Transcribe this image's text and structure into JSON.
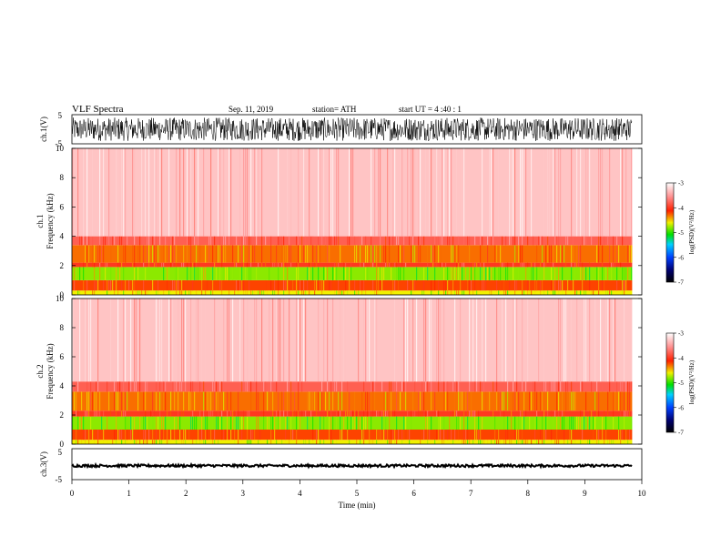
{
  "header": {
    "title": "VLF  Spectra",
    "date": "Sep. 11, 2019",
    "station": "station= ATH",
    "start": "start  UT  =   4  :40 : 1"
  },
  "colorbar": {
    "label": "log(PSD)(V²/Hz)",
    "ticks": [
      "-3",
      "-4",
      "-5",
      "-6",
      "-7"
    ],
    "range": [
      -7,
      -3
    ]
  },
  "chart_data": [
    {
      "type": "line",
      "panel": "ch.1",
      "ylabel": "ch.1(V)",
      "ylim": [
        -5,
        5
      ],
      "yticks": [
        "5",
        "-5"
      ],
      "description_series": "dense broadband waveform spanning roughly -4 to 4 V",
      "x_range_min": [
        0,
        9.83
      ]
    },
    {
      "type": "heatmap",
      "panel": "ch.1 spectrogram",
      "ylabel_lines": [
        "ch.1",
        "Frequency  (kHz)"
      ],
      "ylim": [
        0,
        10
      ],
      "yticks": [
        "0",
        "2",
        "4",
        "6",
        "8",
        "10"
      ],
      "x_range_min": [
        0,
        9.83
      ],
      "bands_khz": [
        {
          "from": 0,
          "to": 0.3,
          "log_psd": -4.6
        },
        {
          "from": 0.3,
          "to": 1.0,
          "log_psd": -4.2
        },
        {
          "from": 1.0,
          "to": 1.9,
          "log_psd": -4.8
        },
        {
          "from": 1.9,
          "to": 2.2,
          "log_psd": -4.0
        },
        {
          "from": 2.2,
          "to": 3.4,
          "log_psd": -4.3
        },
        {
          "from": 3.4,
          "to": 4.0,
          "log_psd": -3.8
        },
        {
          "from": 4.0,
          "to": 10.0,
          "log_psd": -3.3
        }
      ]
    },
    {
      "type": "heatmap",
      "panel": "ch.2 spectrogram",
      "ylabel_lines": [
        "ch.2",
        "Frequency  (kHz)"
      ],
      "ylim": [
        0,
        10
      ],
      "yticks": [
        "0",
        "2",
        "4",
        "6",
        "8",
        "10"
      ],
      "x_range_min": [
        0,
        9.83
      ],
      "bands_khz": [
        {
          "from": 0,
          "to": 0.3,
          "log_psd": -4.6
        },
        {
          "from": 0.3,
          "to": 1.0,
          "log_psd": -4.2
        },
        {
          "from": 1.0,
          "to": 1.9,
          "log_psd": -4.8
        },
        {
          "from": 1.9,
          "to": 2.3,
          "log_psd": -4.0
        },
        {
          "from": 2.3,
          "to": 3.6,
          "log_psd": -4.3
        },
        {
          "from": 3.6,
          "to": 4.3,
          "log_psd": -3.8
        },
        {
          "from": 4.3,
          "to": 10.0,
          "log_psd": -3.3
        }
      ]
    },
    {
      "type": "line",
      "panel": "ch.3",
      "ylabel": "ch.3(V)",
      "ylim": [
        -5,
        5
      ],
      "yticks": [
        "5",
        "-5"
      ],
      "description_series": "near-constant signal around -0.5 V",
      "x_range_min": [
        0,
        9.83
      ]
    }
  ],
  "xaxis": {
    "label": "Time  (min)",
    "ticks": [
      "0",
      "1",
      "2",
      "3",
      "4",
      "5",
      "6",
      "7",
      "8",
      "9",
      "10"
    ],
    "range": [
      0,
      10
    ]
  }
}
